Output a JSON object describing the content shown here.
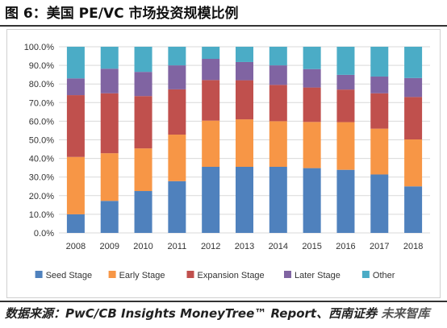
{
  "title": "图 6：美国 PE/VC 市场投资规模比例",
  "source": {
    "text": "数据来源：PwC/CB Insights MoneyTree™ Report、西南证券",
    "watermark": "未来智库"
  },
  "chart_data": {
    "type": "bar",
    "stacked": true,
    "categories": [
      "2008",
      "2009",
      "2010",
      "2011",
      "2012",
      "2013",
      "2014",
      "2015",
      "2016",
      "2017",
      "2018"
    ],
    "series": [
      {
        "name": "Seed Stage",
        "color": "#4F81BD",
        "values": [
          10.0,
          17.2,
          22.5,
          27.8,
          35.5,
          35.5,
          35.5,
          34.8,
          33.9,
          31.4,
          25.0
        ]
      },
      {
        "name": "Early Stage",
        "color": "#F79646",
        "values": [
          30.8,
          25.6,
          22.9,
          25.0,
          24.8,
          25.5,
          24.5,
          24.8,
          25.6,
          24.6,
          25.2
        ]
      },
      {
        "name": "Expansion Stage",
        "color": "#C0504D",
        "values": [
          33.2,
          32.2,
          28.1,
          24.3,
          21.8,
          21.0,
          19.5,
          18.5,
          17.5,
          19.0,
          22.8
        ]
      },
      {
        "name": "Later Stage",
        "color": "#8064A2",
        "values": [
          9.0,
          13.2,
          13.0,
          12.9,
          11.4,
          9.8,
          10.5,
          9.9,
          7.9,
          9.0,
          10.2
        ]
      },
      {
        "name": "Other",
        "color": "#4BACC6",
        "values": [
          17.0,
          11.8,
          13.5,
          10.0,
          6.5,
          8.2,
          10.0,
          12.0,
          15.1,
          16.0,
          16.8
        ]
      }
    ],
    "ylim": [
      0,
      100
    ],
    "yticks": [
      "0.0%",
      "10.0%",
      "20.0%",
      "30.0%",
      "40.0%",
      "50.0%",
      "60.0%",
      "70.0%",
      "80.0%",
      "90.0%",
      "100.0%"
    ],
    "grid": true,
    "legend": "bottom"
  }
}
